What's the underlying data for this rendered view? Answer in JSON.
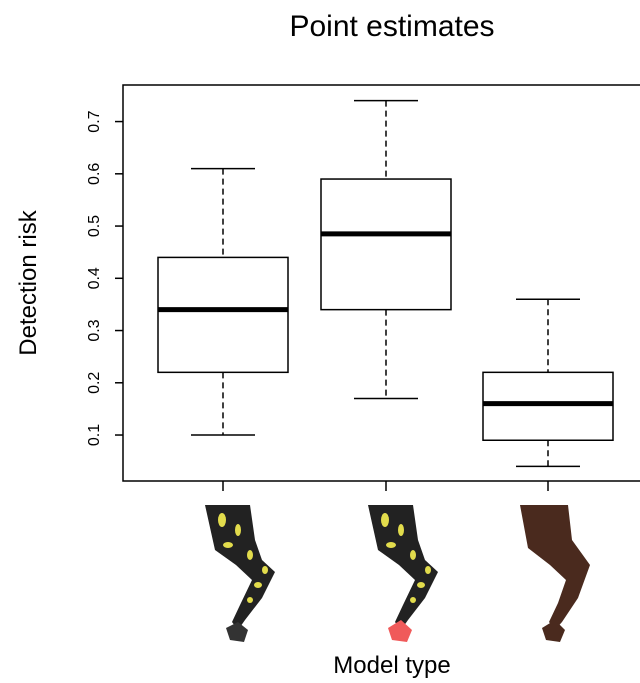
{
  "chart_data": {
    "type": "boxplot",
    "title": "Point estimates",
    "x_label": "Model type",
    "y_label": "Detection risk",
    "categories": [
      null,
      null,
      null
    ],
    "boxes": [
      {
        "whislo": 0.1,
        "q1": 0.22,
        "med": 0.34,
        "q3": 0.44,
        "whishi": 0.61
      },
      {
        "whislo": 0.17,
        "q1": 0.34,
        "med": 0.485,
        "q3": 0.59,
        "whishi": 0.74
      },
      {
        "whislo": 0.04,
        "q1": 0.09,
        "med": 0.16,
        "q3": 0.22,
        "whishi": 0.36
      }
    ],
    "color": "#000000",
    "ylim": [
      0.012,
      0.77
    ],
    "yticks": [
      0.1,
      0.2,
      0.3,
      0.4,
      0.5,
      0.6,
      0.7
    ],
    "grid": false
  }
}
